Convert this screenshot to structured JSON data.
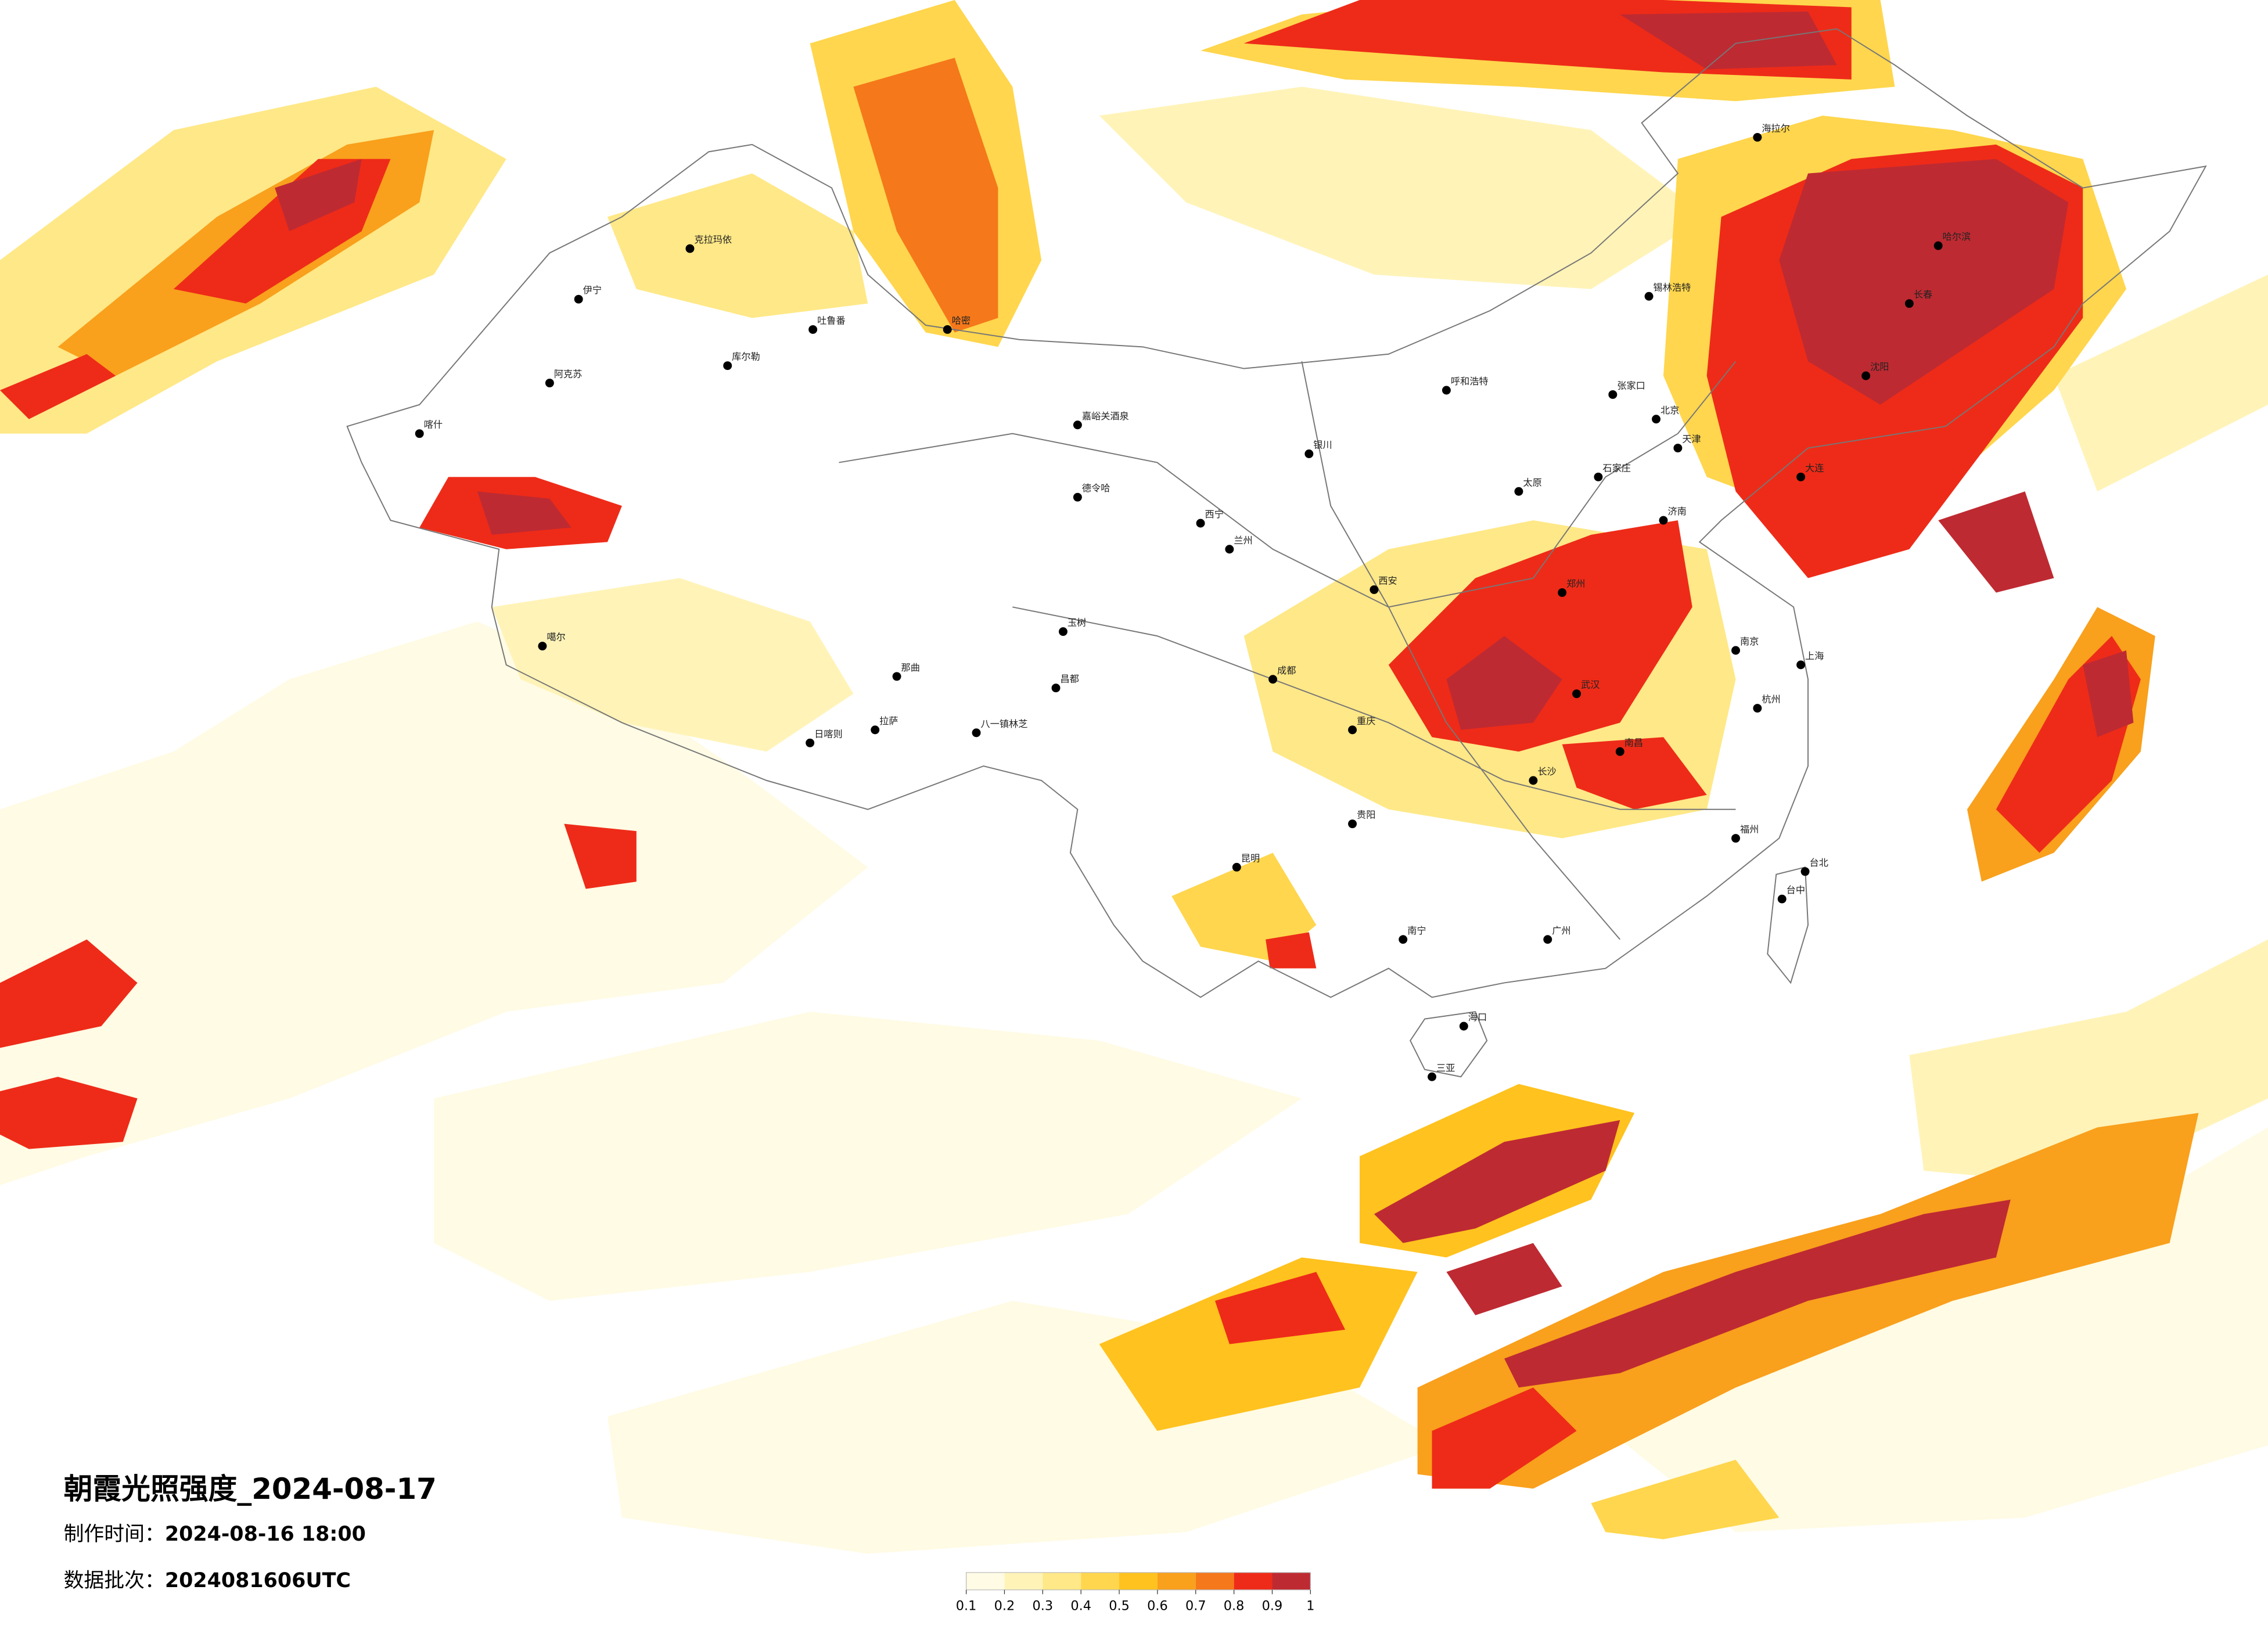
{
  "title": "朝霞光照强度_2024-08-17",
  "production_time": {
    "label": "制作时间：",
    "value": "2024-08-16 18:00"
  },
  "data_batch": {
    "label": "数据批次：",
    "value": "2024081606UTC"
  },
  "legend": {
    "colors": [
      "#fffbe4",
      "#fff3b8",
      "#ffe887",
      "#ffd64d",
      "#ffc21e",
      "#f9a01c",
      "#f5781a",
      "#ee2b18",
      "#be2a32"
    ],
    "ticks": [
      0.1,
      0.2,
      0.3,
      0.4,
      0.5,
      0.6,
      0.7,
      0.8,
      0.9,
      1
    ]
  },
  "cities": [
    "克拉玛依",
    "伊宁",
    "库尔勒",
    "阿克苏",
    "喀什",
    "哈密",
    "吐鲁番",
    "嘉峪关酒泉",
    "德令哈",
    "噶尔",
    "日喀则",
    "拉萨",
    "那曲",
    "八一镇林芝",
    "昌都",
    "玉树",
    "西宁",
    "兰州",
    "银川",
    "呼和浩特",
    "北京",
    "天津",
    "石家庄",
    "太原",
    "西安",
    "郑州",
    "济南",
    "成都",
    "重庆",
    "武汉",
    "南京",
    "上海",
    "杭州",
    "长沙",
    "南昌",
    "福州",
    "贵阳",
    "昆明",
    "南宁",
    "广州",
    "海口",
    "台北",
    "台中",
    "哈尔滨",
    "长春",
    "沈阳",
    "大连",
    "海拉尔",
    "锡林浩特",
    "张家口",
    "三亚"
  ]
}
